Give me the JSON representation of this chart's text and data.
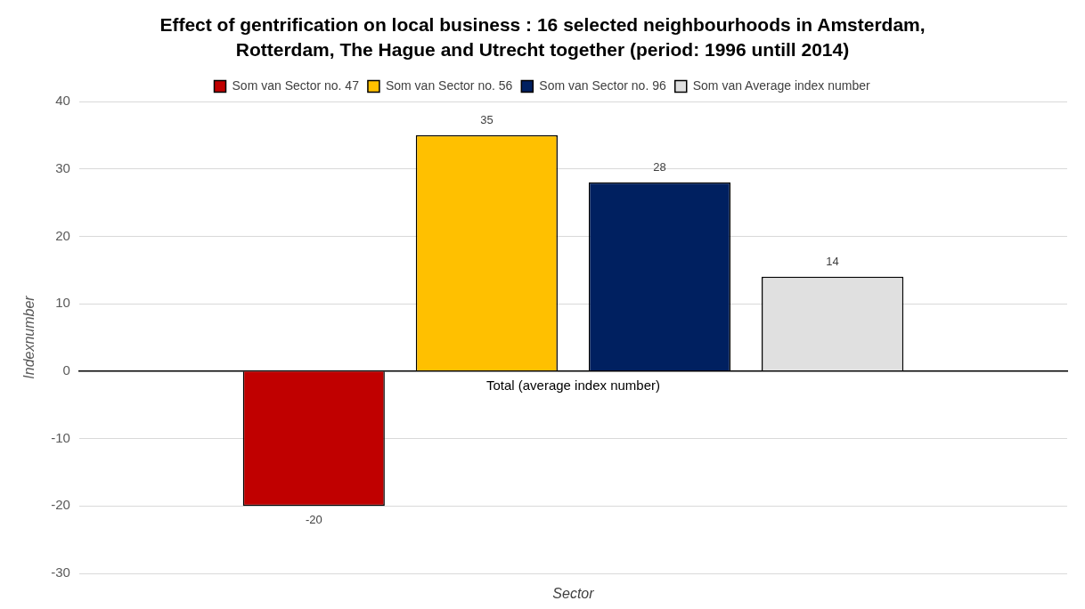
{
  "chart_data": {
    "type": "bar",
    "title": "Effect of gentrification on local business : 16 selected neighbourhoods in Amsterdam, Rotterdam, The Hague and Utrecht together (period: 1996 untill 2014)",
    "categories": [
      "Total (average index number)"
    ],
    "series": [
      {
        "name": "Som van Sector no. 47",
        "color": "#c00000",
        "values": [
          -20
        ]
      },
      {
        "name": "Som van Sector no. 56",
        "color": "#ffc000",
        "values": [
          35
        ]
      },
      {
        "name": "Som van Sector no. 96",
        "color": "#002060",
        "values": [
          28
        ]
      },
      {
        "name": "Som van Average index number",
        "color": "#e0e0e0",
        "values": [
          14
        ]
      }
    ],
    "xlabel": "Sector",
    "ylabel": "Indexnumber",
    "ylim": [
      -30,
      40
    ],
    "yticks": [
      -30,
      -20,
      -10,
      0,
      10,
      20,
      30,
      40
    ],
    "grid": "y",
    "legend": "top",
    "data_labels": true
  }
}
